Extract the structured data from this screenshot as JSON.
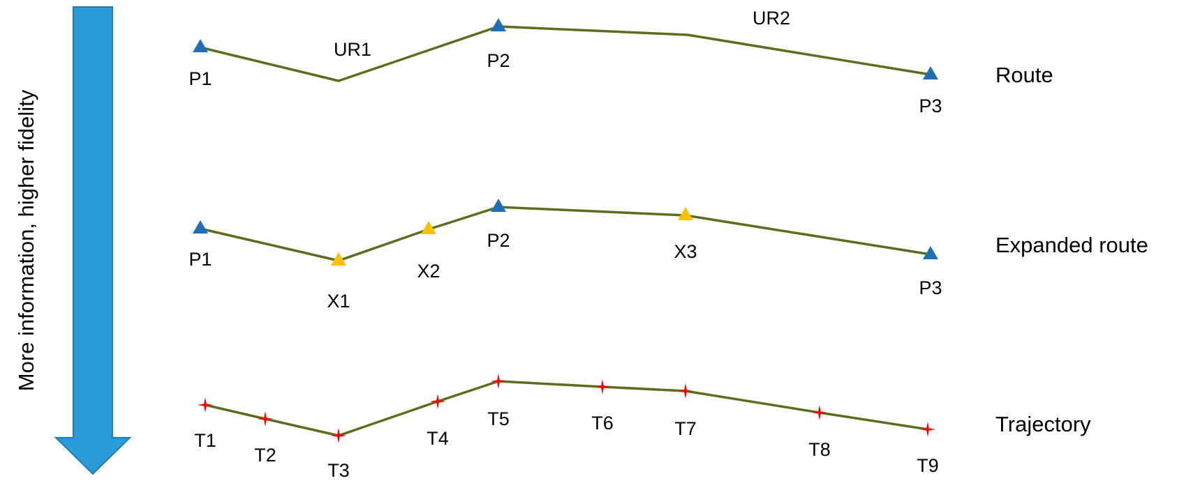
{
  "side_label": "More information, higher fidelity",
  "colors": {
    "arrow": "#2B9BD8",
    "arrow_stroke": "#1E7DB3",
    "line": "#5A6E1E",
    "primary_marker": "#1F6FB8",
    "expanded_marker": "#FFC000",
    "trajectory_marker": "#FF0000"
  },
  "rows": [
    {
      "label": "Route",
      "points": [
        {
          "label": "P1",
          "marker": "primary"
        },
        {
          "label": "",
          "marker": "none"
        },
        {
          "label": "P2",
          "marker": "primary"
        },
        {
          "label": "",
          "marker": "none"
        },
        {
          "label": "P3",
          "marker": "primary"
        }
      ],
      "segment_labels": [
        "UR1",
        "UR2"
      ]
    },
    {
      "label": "Expanded route",
      "points": [
        {
          "label": "P1",
          "marker": "primary"
        },
        {
          "label": "X1",
          "marker": "expanded"
        },
        {
          "label": "X2",
          "marker": "expanded"
        },
        {
          "label": "P2",
          "marker": "primary"
        },
        {
          "label": "X3",
          "marker": "expanded"
        },
        {
          "label": "P3",
          "marker": "primary"
        }
      ]
    },
    {
      "label": "Trajectory",
      "points": [
        {
          "label": "T1",
          "marker": "star"
        },
        {
          "label": "T2",
          "marker": "star"
        },
        {
          "label": "T3",
          "marker": "star"
        },
        {
          "label": "T4",
          "marker": "star"
        },
        {
          "label": "T5",
          "marker": "star"
        },
        {
          "label": "T6",
          "marker": "star"
        },
        {
          "label": "T7",
          "marker": "star"
        },
        {
          "label": "T8",
          "marker": "star"
        },
        {
          "label": "T9",
          "marker": "star"
        }
      ]
    }
  ]
}
